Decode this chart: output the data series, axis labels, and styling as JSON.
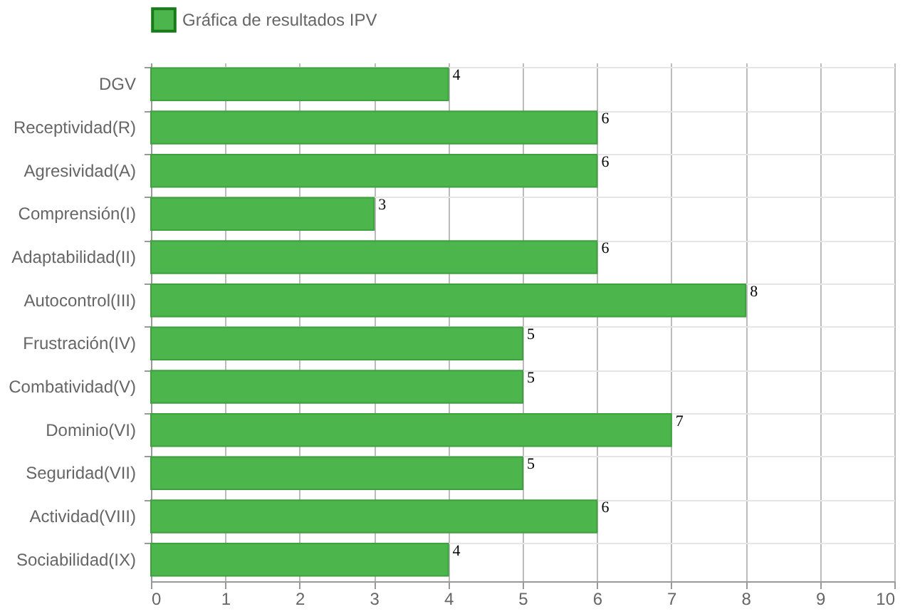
{
  "chart_data": {
    "type": "bar",
    "orientation": "horizontal",
    "categories": [
      "DGV",
      "Receptividad(R)",
      "Agresividad(A)",
      "Comprensión(I)",
      "Adaptabilidad(II)",
      "Autocontrol(III)",
      "Frustración(IV)",
      "Combatividad(V)",
      "Dominio(VI)",
      "Seguridad(VII)",
      "Actividad(VIII)",
      "Sociabilidad(IX)"
    ],
    "series": [
      {
        "name": "Gráfica de resultados IPV",
        "color": "#4cb54c",
        "values": [
          4,
          6,
          6,
          3,
          6,
          8,
          5,
          5,
          7,
          5,
          6,
          4
        ]
      }
    ],
    "xlim": [
      0,
      10
    ],
    "xticks": [
      0,
      1,
      2,
      3,
      4,
      5,
      6,
      7,
      8,
      9,
      10
    ],
    "grid": true,
    "legend": "top",
    "data_labels": true
  }
}
